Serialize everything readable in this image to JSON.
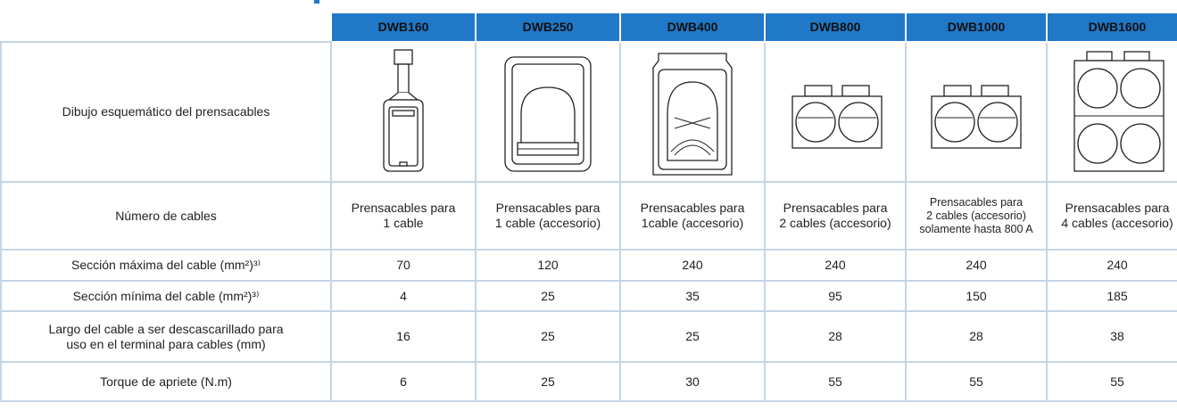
{
  "table": {
    "columns": [
      "DWB160",
      "DWB250",
      "DWB400",
      "DWB800",
      "DWB1000",
      "DWB1600"
    ],
    "rows": [
      {
        "label": "Dibujo esquemático del prensacables",
        "cells": []
      },
      {
        "label": "Número de cables",
        "cells": [
          "Prensacables para\n1 cable",
          "Prensacables para\n1 cable (accesorio)",
          "Prensacables para\n1cable (accesorio)",
          "Prensacables para\n2 cables (accesorio)",
          "Prensacables para\n2 cables (accesorio)\nsolamente hasta 800 A",
          "Prensacables para\n4 cables (accesorio)"
        ]
      },
      {
        "label": "Sección máxima del cable (mm²)³⁾",
        "cells": [
          70,
          120,
          240,
          240,
          240,
          240
        ]
      },
      {
        "label": "Sección mínima del cable (mm²)³⁾",
        "cells": [
          4,
          25,
          35,
          95,
          150,
          185
        ]
      },
      {
        "label": "Largo del cable a ser descascarillado para\nuso en el terminal para cables (mm)",
        "cells": [
          16,
          25,
          25,
          28,
          28,
          38
        ]
      },
      {
        "label": "Torque de apriete (N.m)",
        "cells": [
          6,
          25,
          30,
          55,
          55,
          55
        ]
      }
    ]
  }
}
